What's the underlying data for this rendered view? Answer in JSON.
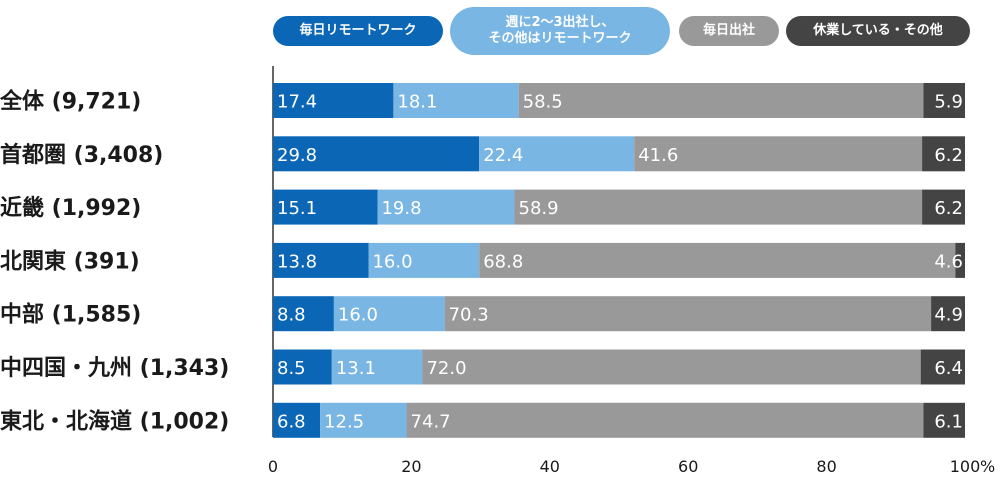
{
  "colors": {
    "daily_remote": "#0b67b6",
    "hybrid": "#7ab6e4",
    "daily_office": "#999999",
    "other": "#444444",
    "axis": "#333333",
    "label_text": "#1a1a1a",
    "value_text": "#ffffff"
  },
  "legend": [
    {
      "label": "毎日リモートワーク",
      "color": "#0b67b6"
    },
    {
      "label": "週に2～3出社し、\nその他はリモートワーク",
      "color": "#7ab6e4"
    },
    {
      "label": "毎日出社",
      "color": "#999999"
    },
    {
      "label": "休業している・その他",
      "color": "#444444"
    }
  ],
  "chart_data": {
    "type": "bar",
    "orientation": "horizontal",
    "stacked": true,
    "categories": [
      "全体 (9,721)",
      "首都圏 (3,408)",
      "近畿 (1,992)",
      "北関東 (391)",
      "中部 (1,585)",
      "中四国・九州 (1,343)",
      "東北・北海道 (1,002)"
    ],
    "series": [
      {
        "name": "毎日リモートワーク",
        "values": [
          17.4,
          29.8,
          15.1,
          13.8,
          8.8,
          8.5,
          6.8
        ]
      },
      {
        "name": "週に2～3出社し、その他はリモートワーク",
        "values": [
          18.1,
          22.4,
          19.8,
          16.0,
          16.0,
          13.1,
          12.5
        ]
      },
      {
        "name": "毎日出社",
        "values": [
          58.5,
          41.6,
          58.9,
          68.8,
          70.3,
          72.0,
          74.7
        ]
      },
      {
        "name": "休業している・その他",
        "values": [
          5.9,
          6.2,
          6.2,
          4.6,
          4.9,
          6.4,
          6.1
        ]
      }
    ],
    "value_labels": [
      [
        "17.4",
        "29.8",
        "15.1",
        "13.8",
        "8.8",
        "8.5",
        "6.8"
      ],
      [
        "18.1",
        "22.4",
        "19.8",
        "16.0",
        "16.0",
        "13.1",
        "12.5"
      ],
      [
        "58.5",
        "41.6",
        "58.9",
        "68.8",
        "70.3",
        "72.0",
        "74.7"
      ],
      [
        "5.9",
        "6.2",
        "6.2",
        "4.6",
        "4.9",
        "6.4",
        "6.1"
      ]
    ],
    "xlim": [
      0,
      100
    ],
    "xticks": [
      "0",
      "20",
      "40",
      "60",
      "80",
      "100"
    ],
    "xunit": "%",
    "grid": false,
    "legend_position": "top"
  }
}
